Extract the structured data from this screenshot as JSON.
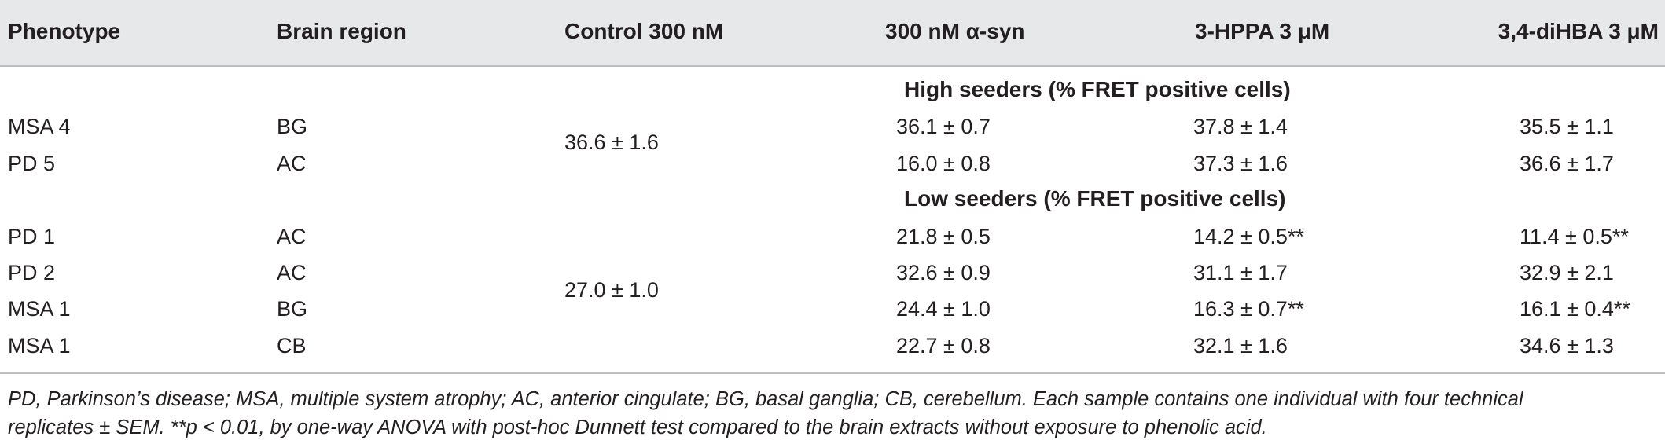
{
  "header": {
    "phenotype": "Phenotype",
    "brain_region": "Brain region",
    "control": "Control 300 nM",
    "asyn": "300 nM α-syn",
    "hppa": "3-HPPA 3 μM",
    "dihba": "3,4-diHBA 3 μM"
  },
  "groups": {
    "high": {
      "title": "High seeders (% FRET positive cells)",
      "control": "36.6 ± 1.6",
      "rows": [
        {
          "phenotype": "MSA 4",
          "region": "BG",
          "asyn": "36.1 ± 0.7",
          "hppa": "37.8 ± 1.4",
          "dihba": "35.5 ± 1.1"
        },
        {
          "phenotype": "PD 5",
          "region": "AC",
          "asyn": "16.0 ± 0.8",
          "hppa": "37.3 ± 1.6",
          "dihba": "36.6 ± 1.7"
        }
      ]
    },
    "low": {
      "title": "Low seeders (% FRET positive cells)",
      "control": "27.0 ± 1.0",
      "rows": [
        {
          "phenotype": "PD 1",
          "region": "AC",
          "asyn": "21.8 ± 0.5",
          "hppa": "14.2 ± 0.5**",
          "dihba": "11.4 ± 0.5**"
        },
        {
          "phenotype": "PD 2",
          "region": "AC",
          "asyn": "32.6 ± 0.9",
          "hppa": "31.1 ± 1.7",
          "dihba": "32.9 ± 2.1"
        },
        {
          "phenotype": "MSA 1",
          "region": "BG",
          "asyn": "24.4 ± 1.0",
          "hppa": "16.3 ± 0.7**",
          "dihba": "16.1 ± 0.4**"
        },
        {
          "phenotype": "MSA 1",
          "region": "CB",
          "asyn": "22.7 ± 0.8",
          "hppa": "32.1 ± 1.6",
          "dihba": "34.6 ± 1.3"
        }
      ]
    }
  },
  "footnote": {
    "line1": "PD, Parkinson’s disease; MSA, multiple system atrophy; AC, anterior cingulate; BG, basal ganglia; CB, cerebellum. Each sample contains one individual with four technical",
    "line2": "replicates ± SEM. **p < 0.01, by one-way ANOVA with post-hoc Dunnett test compared to the brain extracts without exposure to phenolic acid."
  },
  "colors": {
    "header_bg": "#e7e8ea",
    "rule": "#bcbec0",
    "text": "#231f20"
  }
}
